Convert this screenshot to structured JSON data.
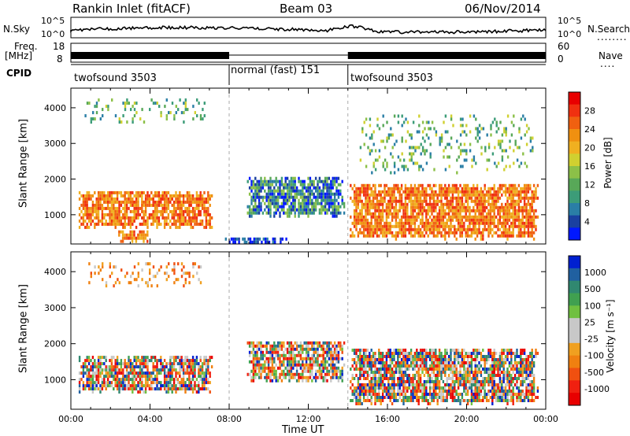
{
  "header": {
    "station": "Rankin Inlet (fitACF)",
    "beam": "Beam 03",
    "date": "06/Nov/2014"
  },
  "panels": {
    "nsky_label": "N.Sky",
    "nsky_ticks": [
      "10^5",
      "10^0"
    ],
    "nsearch_label": "N.Search",
    "freq_label": "Freq.",
    "freq_unit": "[MHz]",
    "freq_ticks": [
      "18",
      "8"
    ],
    "nave_label": "Nave",
    "nave_ticks": [
      "60",
      "0"
    ],
    "cpid_label": "CPID",
    "cpid_segments": [
      {
        "name": "twofsound 3503",
        "start": 0,
        "end": 8
      },
      {
        "name": "normal (fast) 151",
        "start": 8,
        "end": 14
      },
      {
        "name": "twofsound 3503",
        "start": 14,
        "end": 24
      }
    ]
  },
  "chart_data": [
    {
      "type": "heatmap",
      "title": "Power",
      "ylabel": "Slant Range [km]",
      "xlabel": "Time UT",
      "xlim": [
        0,
        24
      ],
      "ylim": [
        180,
        4550
      ],
      "xticks": [
        "00:00",
        "04:00",
        "08:00",
        "12:00",
        "16:00",
        "20:00",
        "00:00"
      ],
      "yticks": [
        1000,
        2000,
        3000,
        4000
      ],
      "colorbar": {
        "label": "Power [dB]",
        "ticks": [
          "28",
          "24",
          "20",
          "16",
          "12",
          "8",
          "4"
        ],
        "colors": [
          "#0018ff",
          "#1a40a0",
          "#2a7ea6",
          "#3c9c78",
          "#58a858",
          "#8cc048",
          "#d0d030",
          "#f0b020",
          "#f09010",
          "#f06010",
          "#f03010",
          "#e80000"
        ]
      },
      "echo_regions": [
        {
          "x0": 0.3,
          "x1": 7.2,
          "y0": 650,
          "y1": 1750,
          "level": "high"
        },
        {
          "x0": 2.2,
          "x1": 4.0,
          "y0": 250,
          "y1": 650,
          "level": "high"
        },
        {
          "x0": 8.8,
          "x1": 13.8,
          "y0": 950,
          "y1": 2150,
          "level": "mid"
        },
        {
          "x0": 7.5,
          "x1": 11.0,
          "y0": 220,
          "y1": 450,
          "level": "low"
        },
        {
          "x0": 14.0,
          "x1": 23.6,
          "y0": 350,
          "y1": 1950,
          "level": "high"
        },
        {
          "x0": 0.5,
          "x1": 7.0,
          "y0": 3600,
          "y1": 4350,
          "level": "scatter"
        },
        {
          "x0": 14.5,
          "x1": 23.5,
          "y0": 2200,
          "y1": 3900,
          "level": "scatter"
        }
      ]
    },
    {
      "type": "heatmap",
      "title": "Velocity",
      "ylabel": "Slant Range [km]",
      "xlabel": "Time UT",
      "xlim": [
        0,
        24
      ],
      "ylim": [
        180,
        4550
      ],
      "xticks": [
        "00:00",
        "04:00",
        "08:00",
        "12:00",
        "16:00",
        "20:00",
        "00:00"
      ],
      "yticks": [
        1000,
        2000,
        3000,
        4000
      ],
      "colorbar": {
        "label": "Velocity [m s⁻¹]",
        "ticks": [
          "1000",
          "500",
          "100",
          "25",
          "-25",
          "-100",
          "-500",
          "-1000"
        ],
        "colors": [
          "#0020d0",
          "#2060a0",
          "#308870",
          "#40a050",
          "#70c040",
          "#c8c8c8",
          "#c8c8c8",
          "#f0a020",
          "#f08010",
          "#f05010",
          "#f02010",
          "#e80000"
        ]
      },
      "echo_regions": [
        {
          "x0": 0.3,
          "x1": 7.2,
          "y0": 650,
          "y1": 1750,
          "level": "mixed"
        },
        {
          "x0": 8.8,
          "x1": 13.8,
          "y0": 950,
          "y1": 2150,
          "level": "mixed"
        },
        {
          "x0": 14.0,
          "x1": 23.6,
          "y0": 350,
          "y1": 1950,
          "level": "mixed"
        },
        {
          "x0": 0.5,
          "x1": 7.0,
          "y0": 3600,
          "y1": 4350,
          "level": "scatter"
        }
      ]
    }
  ]
}
